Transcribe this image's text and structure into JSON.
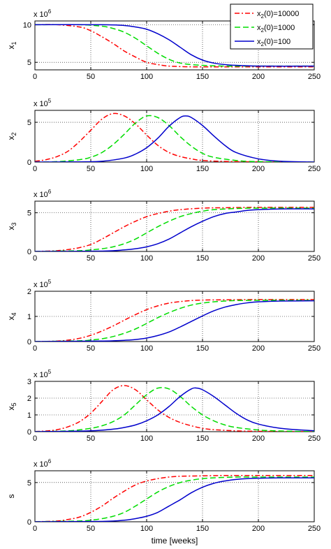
{
  "chart_data": {
    "type": "line",
    "xlabel": "time [weeks]",
    "xlim": [
      0,
      250
    ],
    "xticks": [
      0,
      50,
      100,
      150,
      200,
      250
    ],
    "grid": "dotted",
    "legend": {
      "placement": "top-right",
      "entries": [
        "x2(0)=10000",
        "x2(0)=1000",
        "x2(0)=100"
      ]
    },
    "series_styles": [
      {
        "name": "x2(0)=10000",
        "color": "#ff0000",
        "dash": "dash-dot"
      },
      {
        "name": "x2(0)=1000",
        "color": "#00dd00",
        "dash": "dashed"
      },
      {
        "name": "x2(0)=100",
        "color": "#0000cc",
        "dash": "solid"
      }
    ],
    "panels": [
      {
        "id": "x1",
        "ylabel_base": "x",
        "ylabel_sub": "1",
        "exponent_label": "x 10",
        "exponent_power": "6",
        "ylim": [
          4,
          10.5
        ],
        "yticks": [
          5,
          10
        ],
        "series": [
          {
            "name": "x2(0)=10000",
            "x": [
              0,
              20,
              40,
              50,
              60,
              70,
              80,
              90,
              100,
              110,
              120,
              140,
              160,
              200,
              250
            ],
            "y": [
              10,
              10,
              9.7,
              9.2,
              8.4,
              7.5,
              6.5,
              5.7,
              5.0,
              4.7,
              4.5,
              4.4,
              4.4,
              4.4,
              4.4
            ]
          },
          {
            "name": "x2(0)=1000",
            "x": [
              0,
              40,
              60,
              70,
              80,
              90,
              100,
              110,
              120,
              130,
              140,
              150,
              170,
              200,
              250
            ],
            "y": [
              10,
              10,
              9.8,
              9.5,
              9.0,
              8.2,
              7.2,
              6.2,
              5.4,
              4.9,
              4.7,
              4.6,
              4.5,
              4.5,
              4.5
            ]
          },
          {
            "name": "x2(0)=100",
            "x": [
              0,
              60,
              80,
              90,
              100,
              110,
              120,
              130,
              140,
              150,
              160,
              170,
              180,
              200,
              250
            ],
            "y": [
              10,
              10,
              9.9,
              9.7,
              9.4,
              8.8,
              8.0,
              7.0,
              6.0,
              5.3,
              4.9,
              4.7,
              4.6,
              4.5,
              4.5
            ]
          }
        ]
      },
      {
        "id": "x2",
        "ylabel_base": "x",
        "ylabel_sub": "2",
        "exponent_label": "x 10",
        "exponent_power": "5",
        "ylim": [
          0,
          6.5
        ],
        "yticks": [
          0,
          5
        ],
        "series": [
          {
            "name": "x2(0)=10000",
            "x": [
              0,
              10,
              20,
              30,
              40,
              50,
              60,
              70,
              80,
              90,
              100,
              110,
              120,
              130,
              140,
              150,
              170,
              200,
              250
            ],
            "y": [
              0.1,
              0.3,
              0.7,
              1.4,
              2.6,
              4.0,
              5.4,
              6.1,
              5.8,
              4.8,
              3.4,
              2.1,
              1.2,
              0.7,
              0.4,
              0.2,
              0.08,
              0.02,
              0
            ]
          },
          {
            "name": "x2(0)=1000",
            "x": [
              0,
              20,
              40,
              50,
              60,
              70,
              80,
              90,
              100,
              110,
              120,
              130,
              140,
              150,
              160,
              180,
              200,
              250
            ],
            "y": [
              0,
              0.05,
              0.3,
              0.6,
              1.2,
              2.2,
              3.5,
              4.9,
              5.8,
              5.6,
              4.6,
              3.2,
              2.0,
              1.1,
              0.6,
              0.2,
              0.05,
              0
            ]
          },
          {
            "name": "x2(0)=100",
            "x": [
              0,
              40,
              60,
              80,
              90,
              100,
              110,
              120,
              130,
              135,
              140,
              150,
              160,
              170,
              180,
              200,
              220,
              250
            ],
            "y": [
              0,
              0.02,
              0.1,
              0.5,
              1.0,
              1.8,
              3.0,
              4.5,
              5.6,
              5.8,
              5.6,
              4.6,
              3.3,
              2.1,
              1.2,
              0.4,
              0.1,
              0
            ]
          }
        ]
      },
      {
        "id": "x3",
        "ylabel_base": "x",
        "ylabel_sub": "3",
        "exponent_label": "x 10",
        "exponent_power": "6",
        "ylim": [
          0,
          6.5
        ],
        "yticks": [
          0,
          5
        ],
        "series": [
          {
            "name": "x2(0)=10000",
            "x": [
              0,
              20,
              30,
              40,
              50,
              60,
              70,
              80,
              90,
              100,
              110,
              120,
              130,
              150,
              170,
              200,
              250
            ],
            "y": [
              0,
              0.1,
              0.25,
              0.5,
              0.9,
              1.6,
              2.4,
              3.2,
              3.9,
              4.5,
              4.9,
              5.2,
              5.4,
              5.6,
              5.65,
              5.7,
              5.7
            ]
          },
          {
            "name": "x2(0)=1000",
            "x": [
              0,
              40,
              50,
              60,
              70,
              80,
              90,
              100,
              110,
              120,
              130,
              140,
              150,
              160,
              180,
              200,
              250
            ],
            "y": [
              0,
              0.1,
              0.2,
              0.35,
              0.6,
              1.0,
              1.6,
              2.4,
              3.2,
              3.9,
              4.5,
              4.9,
              5.2,
              5.4,
              5.55,
              5.6,
              5.6
            ]
          },
          {
            "name": "x2(0)=100",
            "x": [
              0,
              60,
              80,
              90,
              100,
              110,
              120,
              130,
              140,
              150,
              160,
              170,
              180,
              190,
              200,
              220,
              250
            ],
            "y": [
              0,
              0.05,
              0.2,
              0.35,
              0.6,
              1.0,
              1.6,
              2.4,
              3.2,
              3.9,
              4.5,
              4.9,
              5.1,
              5.3,
              5.4,
              5.5,
              5.5
            ]
          }
        ]
      },
      {
        "id": "x4",
        "ylabel_base": "x",
        "ylabel_sub": "4",
        "exponent_label": "x 10",
        "exponent_power": "5",
        "ylim": [
          0,
          2
        ],
        "yticks": [
          0,
          1,
          2
        ],
        "series": [
          {
            "name": "x2(0)=10000",
            "x": [
              0,
              20,
              30,
              40,
              50,
              60,
              70,
              80,
              90,
              100,
              110,
              120,
              130,
              140,
              150,
              170,
              200,
              250
            ],
            "y": [
              0,
              0.02,
              0.06,
              0.13,
              0.25,
              0.42,
              0.62,
              0.85,
              1.07,
              1.27,
              1.42,
              1.53,
              1.59,
              1.63,
              1.65,
              1.66,
              1.67,
              1.67
            ]
          },
          {
            "name": "x2(0)=1000",
            "x": [
              0,
              40,
              50,
              60,
              70,
              80,
              90,
              100,
              110,
              120,
              130,
              140,
              150,
              160,
              170,
              180,
              200,
              250
            ],
            "y": [
              0,
              0.03,
              0.06,
              0.11,
              0.2,
              0.33,
              0.5,
              0.72,
              0.95,
              1.15,
              1.32,
              1.45,
              1.53,
              1.58,
              1.61,
              1.63,
              1.64,
              1.64
            ]
          },
          {
            "name": "x2(0)=100",
            "x": [
              0,
              60,
              70,
              80,
              90,
              100,
              110,
              120,
              130,
              140,
              150,
              160,
              170,
              180,
              190,
              200,
              220,
              250
            ],
            "y": [
              0,
              0.02,
              0.03,
              0.05,
              0.08,
              0.14,
              0.24,
              0.38,
              0.58,
              0.8,
              1.02,
              1.22,
              1.37,
              1.47,
              1.54,
              1.58,
              1.61,
              1.62
            ]
          }
        ]
      },
      {
        "id": "x5",
        "ylabel_base": "x",
        "ylabel_sub": "5",
        "exponent_label": "x 10",
        "exponent_power": "5",
        "ylim": [
          0,
          3
        ],
        "yticks": [
          0,
          1,
          2,
          3
        ],
        "series": [
          {
            "name": "x2(0)=10000",
            "x": [
              0,
              10,
              20,
              30,
              40,
              50,
              60,
              70,
              80,
              90,
              100,
              110,
              120,
              130,
              140,
              150,
              160,
              180,
              200,
              250
            ],
            "y": [
              0.01,
              0.04,
              0.12,
              0.3,
              0.6,
              1.1,
              1.8,
              2.5,
              2.75,
              2.5,
              1.9,
              1.3,
              0.85,
              0.55,
              0.35,
              0.2,
              0.12,
              0.05,
              0.02,
              0
            ]
          },
          {
            "name": "x2(0)=1000",
            "x": [
              0,
              30,
              50,
              60,
              70,
              80,
              90,
              100,
              110,
              120,
              130,
              140,
              150,
              160,
              170,
              180,
              200,
              220,
              250
            ],
            "y": [
              0,
              0.05,
              0.2,
              0.35,
              0.6,
              1.0,
              1.6,
              2.2,
              2.6,
              2.55,
              2.1,
              1.5,
              1.0,
              0.65,
              0.4,
              0.25,
              0.1,
              0.04,
              0
            ]
          },
          {
            "name": "x2(0)=100",
            "x": [
              0,
              50,
              70,
              80,
              90,
              100,
              110,
              120,
              130,
              140,
              145,
              150,
              160,
              170,
              180,
              190,
              200,
              220,
              250
            ],
            "y": [
              0,
              0.05,
              0.15,
              0.25,
              0.4,
              0.65,
              1.0,
              1.5,
              2.1,
              2.55,
              2.6,
              2.5,
              2.1,
              1.6,
              1.1,
              0.7,
              0.45,
              0.2,
              0.05
            ]
          }
        ]
      },
      {
        "id": "s",
        "ylabel_base": "s",
        "ylabel_sub": "",
        "exponent_label": "x 10",
        "exponent_power": "6",
        "ylim": [
          0,
          6.5
        ],
        "yticks": [
          0,
          5
        ],
        "series": [
          {
            "name": "x2(0)=10000",
            "x": [
              0,
              20,
              30,
              40,
              50,
              60,
              70,
              80,
              90,
              100,
              110,
              120,
              130,
              150,
              170,
              200,
              250
            ],
            "y": [
              0,
              0.1,
              0.3,
              0.6,
              1.2,
              2.0,
              3.0,
              3.9,
              4.7,
              5.2,
              5.5,
              5.7,
              5.8,
              5.85,
              5.9,
              5.9,
              5.9
            ]
          },
          {
            "name": "x2(0)=1000",
            "x": [
              0,
              40,
              50,
              60,
              70,
              80,
              90,
              100,
              110,
              120,
              130,
              140,
              150,
              160,
              180,
              200,
              250
            ],
            "y": [
              0,
              0.1,
              0.2,
              0.4,
              0.7,
              1.2,
              2.0,
              2.9,
              3.8,
              4.5,
              5.0,
              5.3,
              5.5,
              5.6,
              5.7,
              5.7,
              5.7
            ]
          },
          {
            "name": "x2(0)=100",
            "x": [
              0,
              60,
              80,
              90,
              100,
              110,
              120,
              130,
              140,
              150,
              160,
              170,
              180,
              190,
              200,
              220,
              250
            ],
            "y": [
              0,
              0.05,
              0.2,
              0.4,
              0.7,
              1.2,
              2.0,
              2.8,
              3.7,
              4.4,
              4.9,
              5.2,
              5.4,
              5.5,
              5.55,
              5.6,
              5.6
            ]
          }
        ]
      }
    ]
  }
}
